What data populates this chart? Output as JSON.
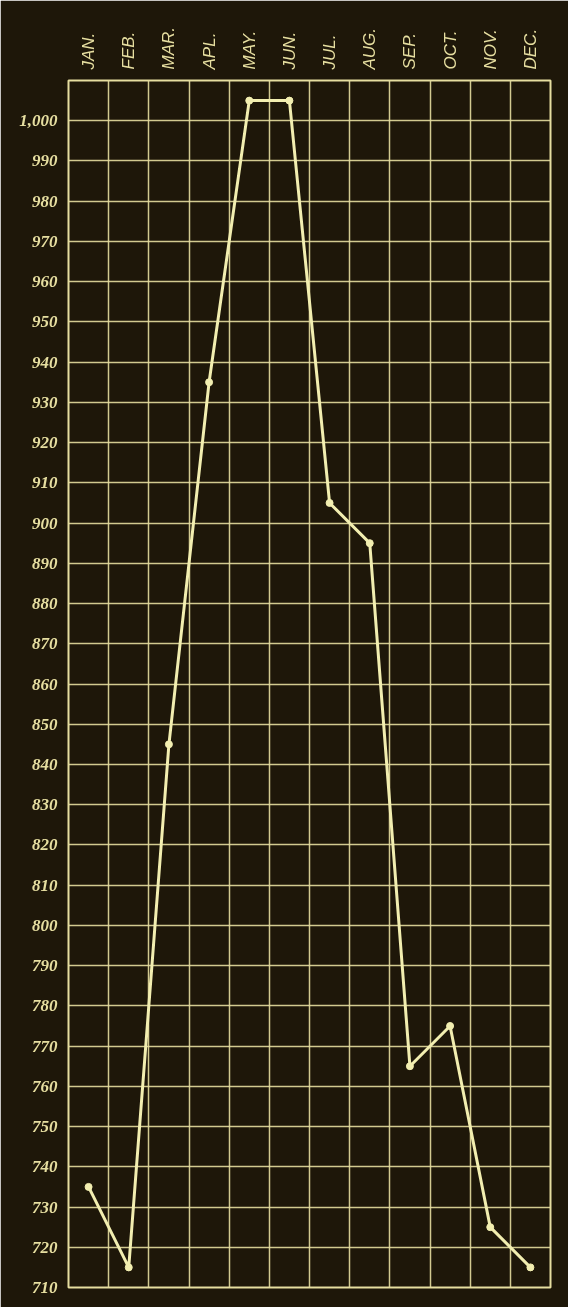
{
  "chart_data": {
    "type": "line",
    "categories": [
      "JAN.",
      "FEB.",
      "MAR.",
      "APL.",
      "MAY.",
      "JUN.",
      "JUL.",
      "AUG.",
      "SEP.",
      "OCT.",
      "NOV.",
      "DEC."
    ],
    "series": [
      {
        "color": "#f2eeb0",
        "values": [
          735,
          715,
          845,
          935,
          1005,
          1005,
          905,
          895,
          765,
          775,
          725,
          715
        ]
      }
    ],
    "ylim": [
      710,
      1010
    ],
    "yticks": [
      710,
      720,
      730,
      740,
      750,
      760,
      770,
      780,
      790,
      800,
      810,
      820,
      830,
      840,
      850,
      860,
      870,
      880,
      890,
      900,
      910,
      920,
      930,
      940,
      950,
      960,
      970,
      980,
      990,
      {
        "value": 1000,
        "label": "1,000"
      }
    ],
    "grid": true,
    "marker": "circle",
    "line_style": "solid"
  }
}
